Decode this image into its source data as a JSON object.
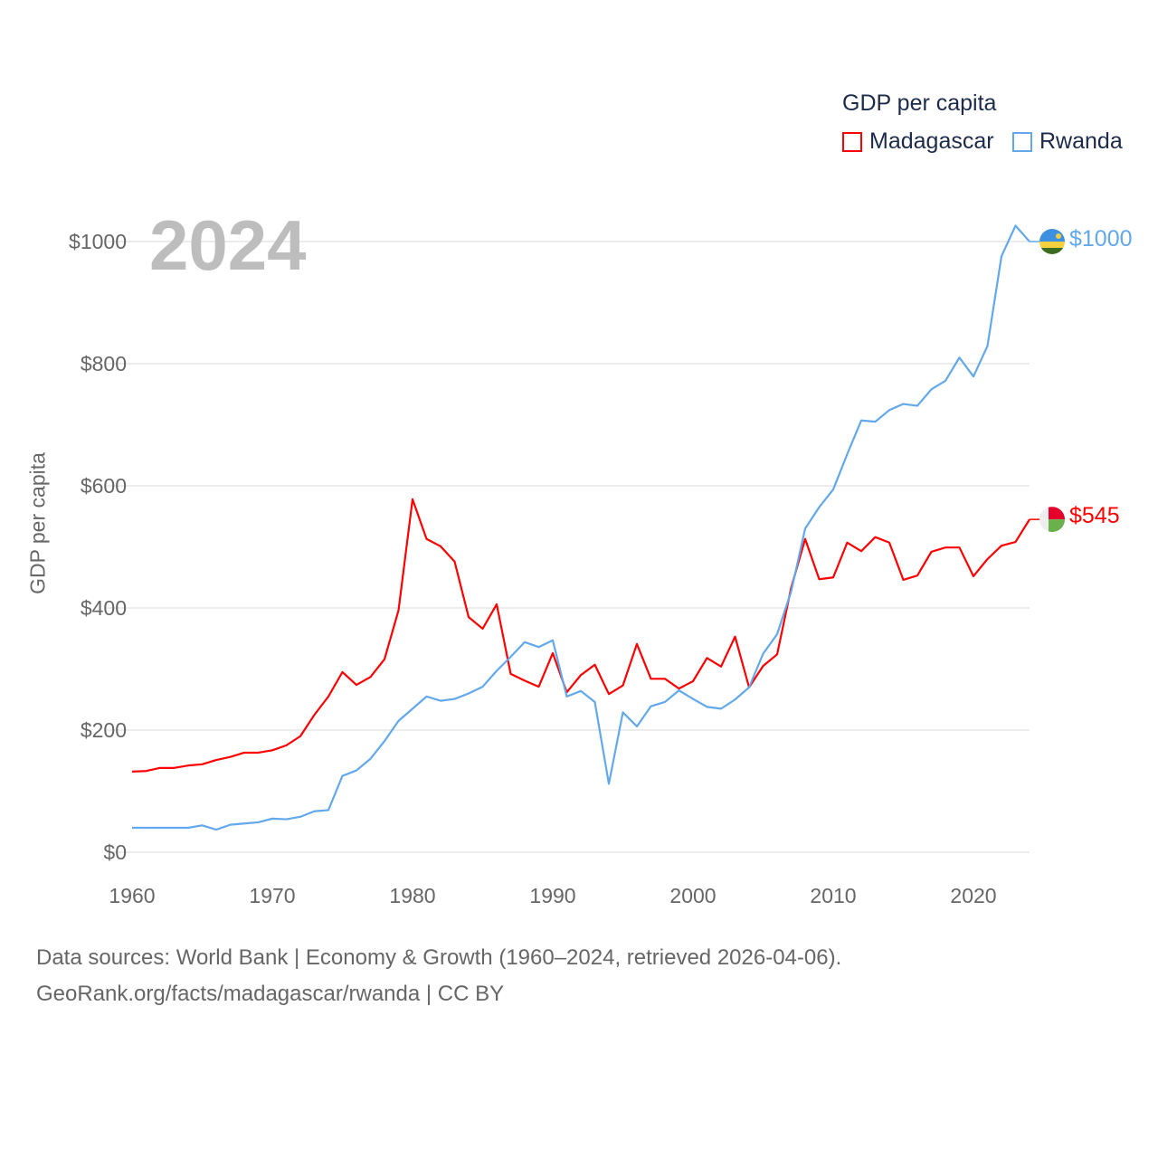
{
  "chart_data": {
    "type": "line",
    "title": "GDP per capita",
    "ylabel": "GDP per capita",
    "xlabel": "",
    "year_label": "2024",
    "xlim": [
      1960,
      2024
    ],
    "ylim": [
      0,
      1000
    ],
    "x_ticks": [
      "1960",
      "1970",
      "1980",
      "1990",
      "2000",
      "2010",
      "2020"
    ],
    "y_ticks": [
      "$0",
      "$200",
      "$400",
      "$600",
      "$800",
      "$1000"
    ],
    "grid": true,
    "legend_position": "top-right",
    "x": [
      1960,
      1961,
      1962,
      1963,
      1964,
      1965,
      1966,
      1967,
      1968,
      1969,
      1970,
      1971,
      1972,
      1973,
      1974,
      1975,
      1976,
      1977,
      1978,
      1979,
      1980,
      1981,
      1982,
      1983,
      1984,
      1985,
      1986,
      1987,
      1988,
      1989,
      1990,
      1991,
      1992,
      1993,
      1994,
      1995,
      1996,
      1997,
      1998,
      1999,
      2000,
      2001,
      2002,
      2003,
      2004,
      2005,
      2006,
      2007,
      2008,
      2009,
      2010,
      2011,
      2012,
      2013,
      2014,
      2015,
      2016,
      2017,
      2018,
      2019,
      2020,
      2021,
      2022,
      2023,
      2024
    ],
    "series": [
      {
        "name": "Madagascar",
        "color": "#ff0000",
        "end_label": "$545",
        "values": [
          132,
          133,
          138,
          138,
          142,
          144,
          151,
          156,
          163,
          163,
          167,
          175,
          190,
          225,
          255,
          295,
          274,
          287,
          316,
          396,
          578,
          513,
          501,
          476,
          385,
          366,
          406,
          292,
          281,
          271,
          326,
          262,
          290,
          307,
          259,
          273,
          341,
          284,
          284,
          268,
          280,
          318,
          304,
          353,
          270,
          305,
          324,
          433,
          513,
          447,
          450,
          507,
          493,
          516,
          507,
          446,
          453,
          492,
          499,
          499,
          452,
          480,
          502,
          508,
          545
        ]
      },
      {
        "name": "Rwanda",
        "color": "#62a8ea",
        "end_label": "$1000",
        "values": [
          40,
          40,
          40,
          40,
          40,
          44,
          37,
          45,
          47,
          49,
          55,
          54,
          58,
          67,
          69,
          125,
          134,
          153,
          182,
          215,
          235,
          255,
          248,
          251,
          260,
          271,
          297,
          320,
          344,
          336,
          347,
          255,
          264,
          246,
          112,
          229,
          206,
          239,
          246,
          265,
          251,
          238,
          235,
          250,
          270,
          325,
          357,
          427,
          530,
          565,
          594,
          652,
          707,
          705,
          724,
          734,
          731,
          758,
          772,
          810,
          779,
          829,
          976,
          1026,
          1000
        ]
      }
    ]
  },
  "footer": {
    "line1": "Data sources: World Bank | Economy & Growth (1960–2024, retrieved 2026-04-06).",
    "line2": "GeoRank.org/facts/madagascar/rwanda | CC BY"
  }
}
